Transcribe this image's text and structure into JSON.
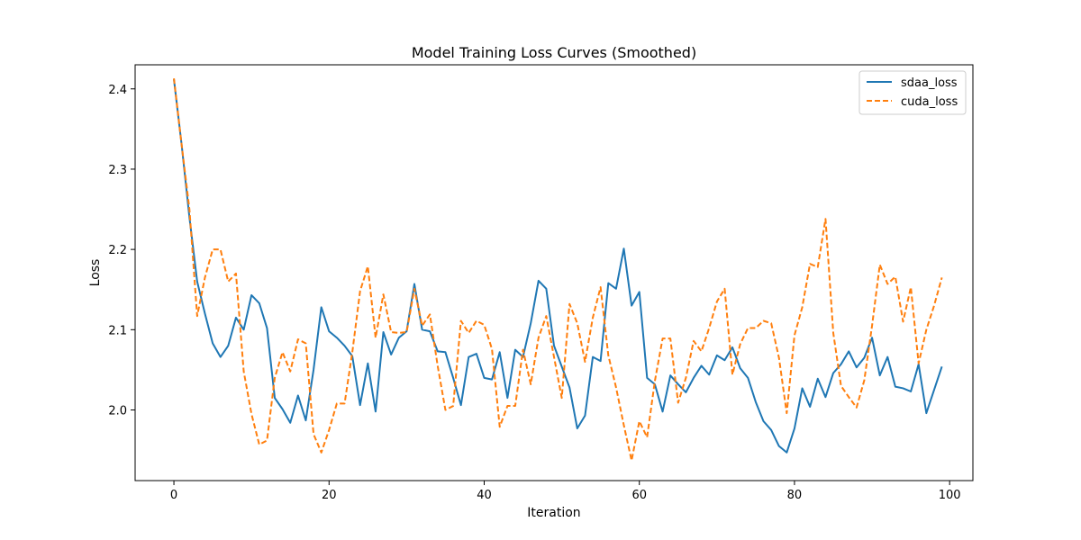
{
  "chart_data": {
    "type": "line",
    "title": "Model Training Loss Curves (Smoothed)",
    "xlabel": "Iteration",
    "ylabel": "Loss",
    "xlim": [
      -5,
      103
    ],
    "ylim": [
      1.912,
      2.43
    ],
    "xticks": [
      0,
      20,
      40,
      60,
      80,
      100
    ],
    "yticks": [
      2.0,
      2.1,
      2.2,
      2.3,
      2.4
    ],
    "xtick_labels": [
      "0",
      "20",
      "40",
      "60",
      "80",
      "100"
    ],
    "ytick_labels": [
      "2.0",
      "2.1",
      "2.2",
      "2.3",
      "2.4"
    ],
    "grid": false,
    "legend_position": "top-right",
    "x": [
      0,
      1,
      2,
      3,
      4,
      5,
      6,
      7,
      8,
      9,
      10,
      11,
      12,
      13,
      14,
      15,
      16,
      17,
      18,
      19,
      20,
      21,
      22,
      23,
      24,
      25,
      26,
      27,
      28,
      29,
      30,
      31,
      32,
      33,
      34,
      35,
      36,
      37,
      38,
      39,
      40,
      41,
      42,
      43,
      44,
      45,
      46,
      47,
      48,
      49,
      50,
      51,
      52,
      53,
      54,
      55,
      56,
      57,
      58,
      59,
      60,
      61,
      62,
      63,
      64,
      65,
      66,
      67,
      68,
      69,
      70,
      71,
      72,
      73,
      74,
      75,
      76,
      77,
      78,
      79,
      80,
      81,
      82,
      83,
      84,
      85,
      86,
      87,
      88,
      89,
      90,
      91,
      92,
      93,
      94,
      95,
      96,
      97,
      98,
      99
    ],
    "series": [
      {
        "name": "sdaa_loss",
        "color": "#1f77b4",
        "style": "solid",
        "values": [
          2.412,
          2.33,
          2.24,
          2.16,
          2.12,
          2.083,
          2.066,
          2.08,
          2.115,
          2.1,
          2.143,
          2.133,
          2.102,
          2.015,
          2.001,
          1.984,
          2.018,
          1.987,
          2.05,
          2.128,
          2.098,
          2.09,
          2.08,
          2.067,
          2.006,
          2.058,
          1.998,
          2.097,
          2.069,
          2.09,
          2.098,
          2.157,
          2.1,
          2.098,
          2.073,
          2.072,
          2.04,
          2.006,
          2.066,
          2.07,
          2.04,
          2.038,
          2.072,
          2.015,
          2.075,
          2.066,
          2.108,
          2.161,
          2.151,
          2.08,
          2.054,
          2.028,
          1.977,
          1.993,
          2.066,
          2.061,
          2.158,
          2.151,
          2.201,
          2.13,
          2.147,
          2.04,
          2.032,
          1.998,
          2.043,
          2.032,
          2.022,
          2.04,
          2.055,
          2.044,
          2.068,
          2.062,
          2.078,
          2.052,
          2.04,
          2.01,
          1.986,
          1.975,
          1.955,
          1.947,
          1.977,
          2.027,
          2.004,
          2.039,
          2.016,
          2.046,
          2.057,
          2.073,
          2.053,
          2.065,
          2.09,
          2.043,
          2.066,
          2.029,
          2.027,
          2.023,
          2.057,
          1.996,
          2.025,
          2.054
        ]
      },
      {
        "name": "cuda_loss",
        "color": "#ff7f0e",
        "style": "dashed",
        "values": [
          2.413,
          2.33,
          2.25,
          2.117,
          2.165,
          2.2,
          2.2,
          2.16,
          2.17,
          2.048,
          1.995,
          1.957,
          1.962,
          2.04,
          2.072,
          2.048,
          2.088,
          2.083,
          1.97,
          1.947,
          1.975,
          2.008,
          2.008,
          2.072,
          2.148,
          2.179,
          2.09,
          2.144,
          2.097,
          2.096,
          2.097,
          2.151,
          2.105,
          2.119,
          2.055,
          2.0,
          2.005,
          2.111,
          2.096,
          2.111,
          2.106,
          2.076,
          1.979,
          2.005,
          2.005,
          2.075,
          2.032,
          2.09,
          2.117,
          2.066,
          2.015,
          2.132,
          2.108,
          2.06,
          2.115,
          2.153,
          2.068,
          2.028,
          1.981,
          1.937,
          1.986,
          1.966,
          2.036,
          2.089,
          2.089,
          2.009,
          2.04,
          2.086,
          2.073,
          2.102,
          2.135,
          2.151,
          2.044,
          2.082,
          2.102,
          2.102,
          2.111,
          2.108,
          2.065,
          1.996,
          2.093,
          2.128,
          2.182,
          2.178,
          2.238,
          2.096,
          2.03,
          2.016,
          2.003,
          2.037,
          2.105,
          2.181,
          2.157,
          2.166,
          2.11,
          2.153,
          2.058,
          2.1,
          2.13,
          2.165
        ]
      }
    ]
  }
}
